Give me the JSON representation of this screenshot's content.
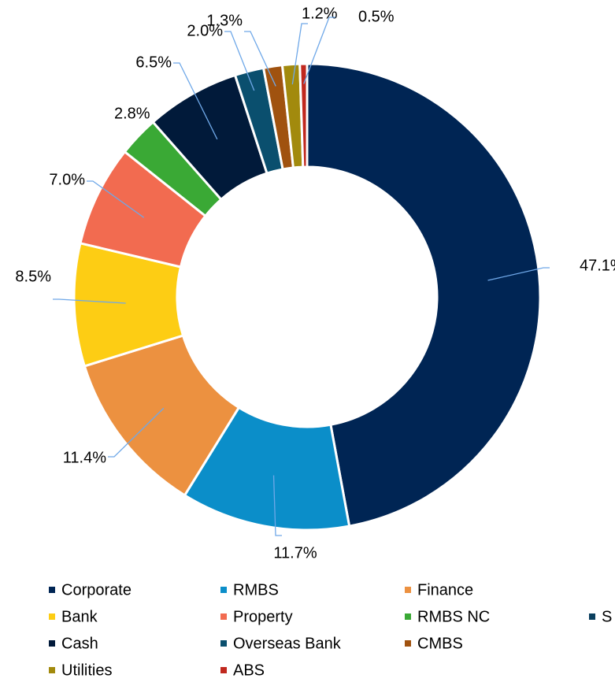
{
  "chart_data": {
    "type": "donut",
    "categories": [
      "Corporate",
      "RMBS",
      "Finance",
      "Bank",
      "Property",
      "RMBS NC",
      "Cash",
      "Overseas Bank",
      "CMBS",
      "Utilities",
      "ABS",
      "S"
    ],
    "values": [
      47.1,
      11.7,
      11.4,
      8.5,
      7.0,
      2.8,
      6.5,
      2.0,
      1.3,
      1.2,
      0.5,
      null
    ],
    "value_labels": [
      "47.1%",
      "11.7%",
      "11.4%",
      "8.5%",
      "7.0%",
      "2.8%",
      "6.5%",
      "2.0%",
      "1.3%",
      "1.2%",
      "0.5%",
      null
    ],
    "colors": [
      "#002554",
      "#0b8ec9",
      "#ec9140",
      "#fdcd14",
      "#f26b50",
      "#3aa935",
      "#011a3a",
      "#0a4f6e",
      "#a0520f",
      "#a28a0d",
      "#c0281e",
      "#0a3f5e"
    ],
    "legend": "bottom"
  }
}
